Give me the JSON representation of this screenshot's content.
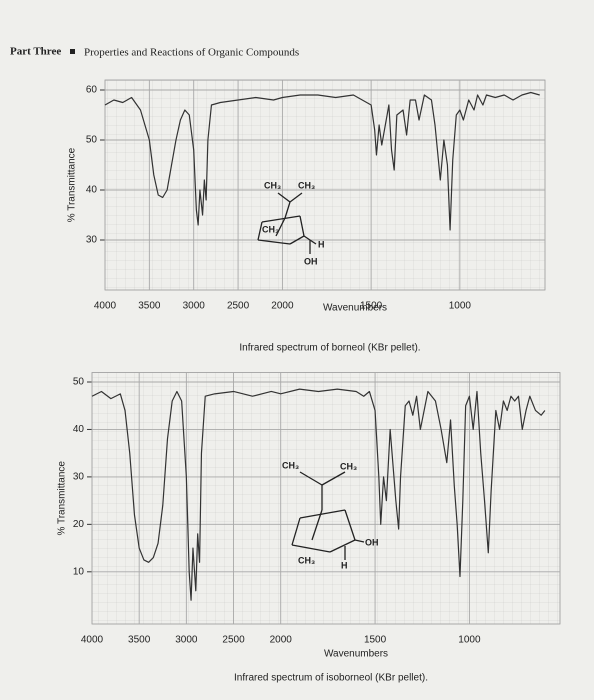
{
  "header": {
    "part": "Part Three",
    "title": "Properties and Reactions of Organic Compounds"
  },
  "chart_data": [
    {
      "type": "line",
      "color": "#333333",
      "grid": true,
      "xlabel": "Wavenumbers",
      "ylabel": "% Transmittance",
      "caption": "Infrared spectrum of borneol (KBr pellet).",
      "annotations": [
        "CH₃",
        "CH₃",
        "CH₃",
        "H",
        "OH"
      ],
      "xlim": [
        4000,
        520
      ],
      "xscale": {
        "break": 2000,
        "factor": 2
      },
      "xticks": [
        4000,
        3500,
        3000,
        2500,
        2000,
        1500,
        1000
      ],
      "ylim": [
        20,
        62
      ],
      "yticks": [
        30,
        40,
        50,
        60
      ],
      "x": [
        4000,
        3900,
        3800,
        3700,
        3600,
        3500,
        3450,
        3400,
        3350,
        3300,
        3250,
        3200,
        3150,
        3100,
        3050,
        3000,
        2970,
        2950,
        2930,
        2900,
        2880,
        2860,
        2840,
        2800,
        2700,
        2500,
        2300,
        2100,
        2000,
        1900,
        1800,
        1700,
        1600,
        1550,
        1500,
        1480,
        1470,
        1455,
        1440,
        1400,
        1385,
        1370,
        1355,
        1320,
        1300,
        1280,
        1250,
        1230,
        1200,
        1160,
        1140,
        1110,
        1090,
        1070,
        1055,
        1040,
        1020,
        1000,
        980,
        950,
        920,
        900,
        870,
        850,
        800,
        750,
        700,
        650,
        600,
        550
      ],
      "values": [
        57,
        58,
        57.5,
        58.5,
        56,
        50,
        43,
        39,
        38.5,
        40,
        45,
        50,
        54,
        56,
        55,
        48,
        36,
        33,
        40,
        35,
        42,
        38,
        50,
        57,
        57.5,
        58,
        58.5,
        58,
        58.5,
        59,
        59,
        58.5,
        59,
        58,
        57,
        52,
        47,
        53,
        49,
        57,
        48,
        44,
        55,
        56,
        51,
        58,
        58,
        54,
        59,
        58,
        53,
        42,
        50,
        45,
        32,
        46,
        55,
        56,
        54,
        58,
        56,
        59,
        57,
        59,
        58.5,
        59,
        58,
        59,
        59.5,
        59
      ]
    },
    {
      "type": "line",
      "color": "#333333",
      "grid": true,
      "xlabel": "Wavenumbers",
      "ylabel": "% Transmittance",
      "caption": "Infrared spectrum of isoborneol (KBr pellet).",
      "annotations": [
        "CH₃",
        "CH₃",
        "OH",
        "CH₃",
        "H"
      ],
      "xlim": [
        4000,
        520
      ],
      "xscale": {
        "break": 2000,
        "factor": 2
      },
      "xticks": [
        4000,
        3500,
        3000,
        2500,
        2000,
        1500,
        1000
      ],
      "ylim": [
        -1,
        52
      ],
      "yticks": [
        10,
        20,
        30,
        40,
        50
      ],
      "x": [
        4000,
        3900,
        3800,
        3700,
        3650,
        3600,
        3550,
        3500,
        3450,
        3400,
        3350,
        3300,
        3250,
        3200,
        3150,
        3100,
        3050,
        3000,
        2970,
        2950,
        2930,
        2900,
        2880,
        2860,
        2840,
        2800,
        2700,
        2500,
        2300,
        2100,
        2000,
        1900,
        1800,
        1700,
        1600,
        1560,
        1530,
        1500,
        1480,
        1470,
        1455,
        1440,
        1420,
        1400,
        1390,
        1375,
        1365,
        1340,
        1320,
        1300,
        1280,
        1260,
        1240,
        1220,
        1180,
        1150,
        1120,
        1100,
        1080,
        1065,
        1050,
        1035,
        1020,
        1000,
        980,
        960,
        940,
        920,
        900,
        885,
        860,
        840,
        820,
        800,
        780,
        760,
        740,
        720,
        700,
        680,
        650,
        620,
        600
      ],
      "values": [
        47,
        48,
        46.5,
        47.5,
        44,
        35,
        22,
        15,
        12.5,
        12,
        13,
        16,
        24,
        38,
        46,
        48,
        46,
        30,
        10,
        4,
        15,
        6,
        18,
        12,
        35,
        47,
        47.5,
        48,
        47,
        48,
        47.5,
        48.5,
        48,
        48.5,
        48,
        47,
        48,
        44,
        30,
        20,
        30,
        25,
        40,
        30,
        25,
        19,
        30,
        45,
        46,
        43,
        47,
        40,
        44,
        48,
        46,
        40,
        33,
        42,
        28,
        20,
        9,
        25,
        45,
        47,
        40,
        48,
        35,
        25,
        14,
        27,
        44,
        40,
        46,
        44,
        47,
        46,
        47,
        40,
        44,
        47,
        44,
        43,
        44
      ]
    }
  ]
}
